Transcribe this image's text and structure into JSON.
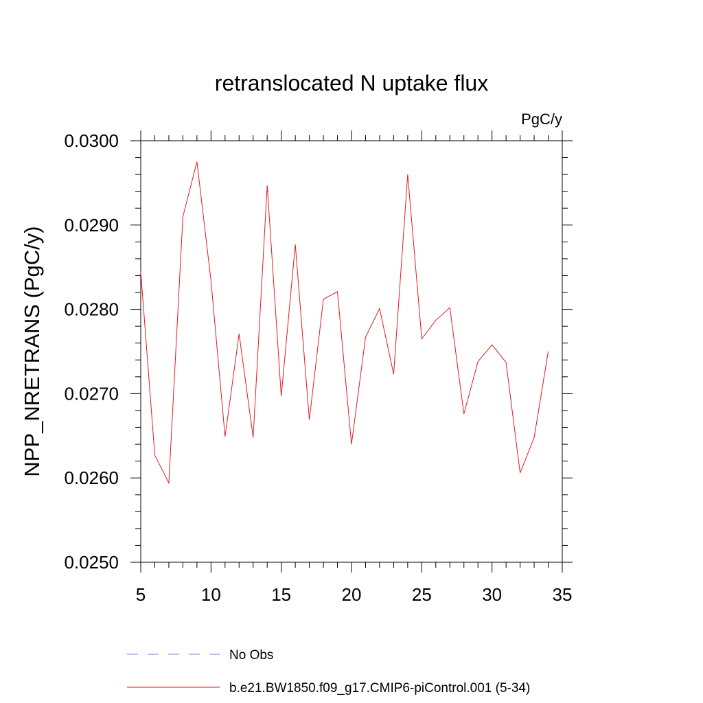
{
  "chart_data": {
    "type": "line",
    "title": "retranslocated N uptake flux",
    "units": "PgC/y",
    "ylabel": "NPP_NRETRANS  (PgC/y)",
    "xlabel": "",
    "xlim": [
      5,
      35
    ],
    "ylim": [
      0.025,
      0.03
    ],
    "x_ticks": [
      5,
      10,
      15,
      20,
      25,
      30,
      35
    ],
    "y_ticks": [
      0.025,
      0.026,
      0.027,
      0.028,
      0.029,
      0.03
    ],
    "y_tick_labels": [
      "0.0250",
      "0.0260",
      "0.0270",
      "0.0280",
      "0.0290",
      "0.0300"
    ],
    "x_minor_step": 1,
    "y_minor_step": 0.0002,
    "grid": false,
    "series": [
      {
        "name": "b.e21.BW1850.f09_g17.CMIP6-piControl.001 (5-34)",
        "color": "#e8161c",
        "style": "solid",
        "x": [
          5,
          6,
          7,
          8,
          9,
          10,
          11,
          12,
          13,
          14,
          15,
          16,
          17,
          18,
          19,
          20,
          21,
          22,
          23,
          24,
          25,
          26,
          27,
          28,
          29,
          30,
          31,
          32,
          33,
          34
        ],
        "y": [
          0.02845,
          0.02627,
          0.02594,
          0.0291,
          0.02975,
          0.02834,
          0.02649,
          0.02771,
          0.02648,
          0.02947,
          0.02697,
          0.02877,
          0.02669,
          0.02812,
          0.02821,
          0.0264,
          0.02767,
          0.02801,
          0.02723,
          0.0296,
          0.02765,
          0.02787,
          0.02802,
          0.02676,
          0.02738,
          0.02758,
          0.02737,
          0.02606,
          0.02648,
          0.0275
        ]
      }
    ],
    "legend": {
      "placement": "bottom",
      "entries": [
        {
          "label": "No Obs",
          "color": "#7f7fd8",
          "style": "dashed"
        },
        {
          "label": "b.e21.BW1850.f09_g17.CMIP6-piControl.001 (5-34)",
          "color": "#e8161c",
          "style": "solid"
        }
      ]
    }
  }
}
